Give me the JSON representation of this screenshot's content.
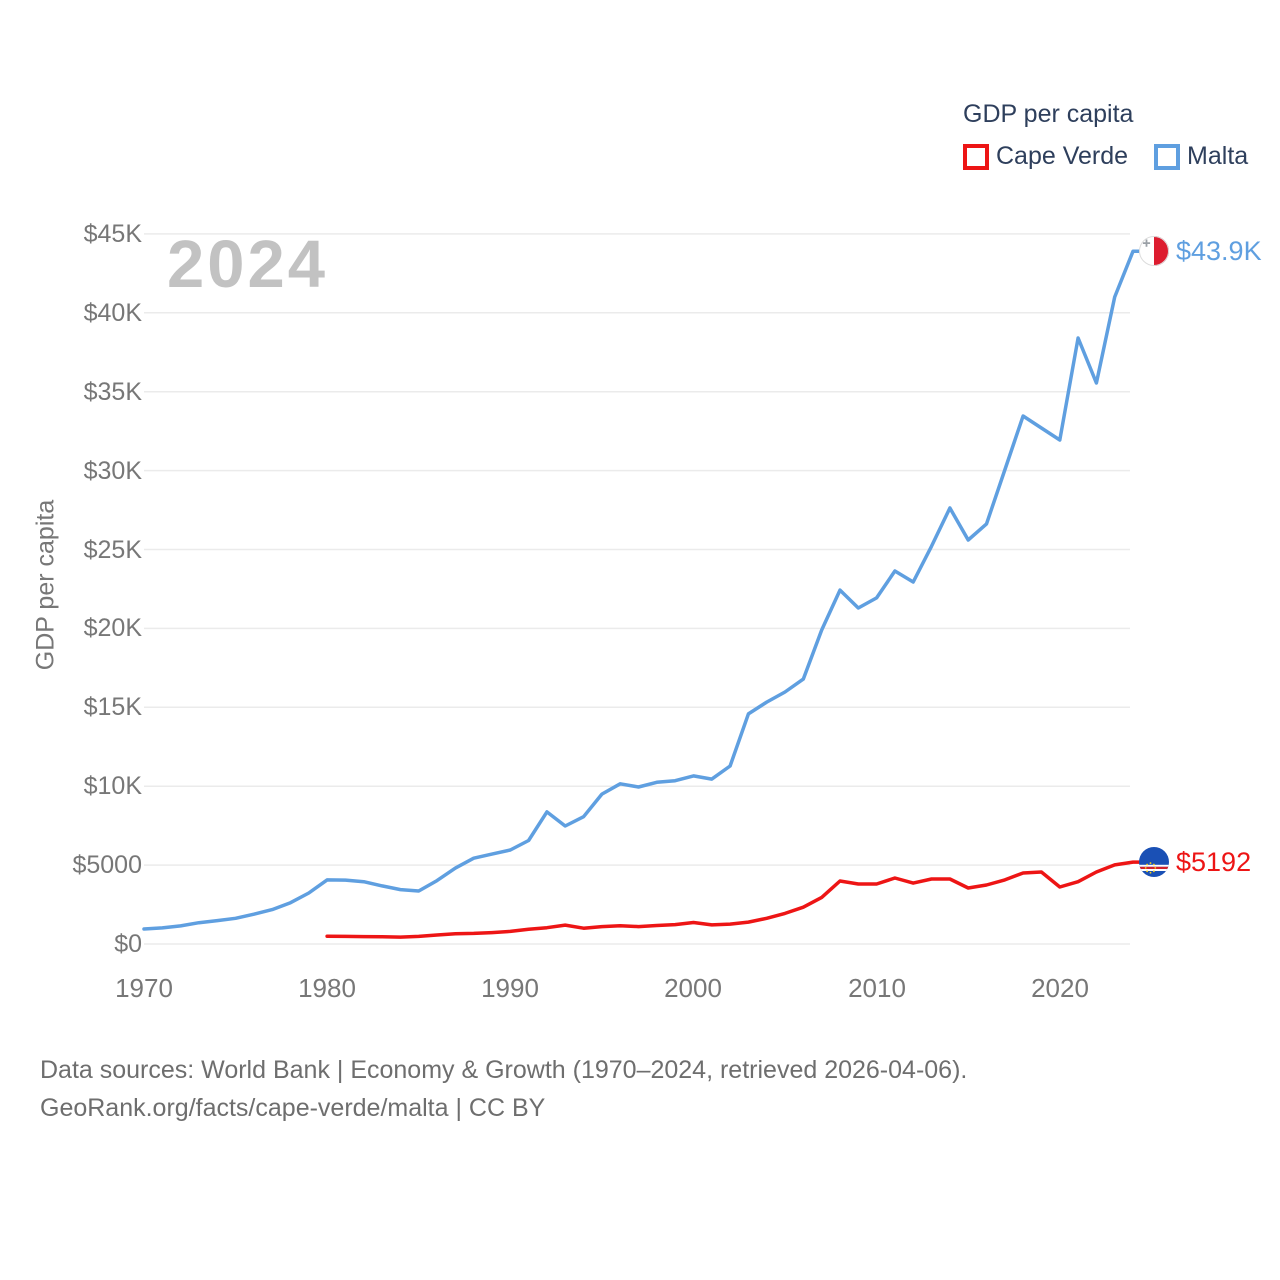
{
  "legend": {
    "title": "GDP per capita",
    "items": [
      {
        "label": "Cape Verde",
        "color": "#ed1515"
      },
      {
        "label": "Malta",
        "color": "#5f9fe0"
      }
    ]
  },
  "watermark": "2024",
  "footer": {
    "line1": "Data sources: World Bank | Economy & Growth (1970–2024, retrieved 2026-04-06).",
    "line2": "GeoRank.org/facts/cape-verde/malta | CC BY"
  },
  "chart_data": {
    "type": "line",
    "title": "GDP per capita",
    "xlabel": "",
    "ylabel": "GDP per capita",
    "x_range": [
      1970,
      2024
    ],
    "ylim": [
      0,
      45000
    ],
    "grid": true,
    "grid_color": "#ebebeb",
    "legend_position": "top-right",
    "y_ticks": [
      {
        "label": "$0",
        "value": 0
      },
      {
        "label": "$5000",
        "value": 5000
      },
      {
        "label": "$10K",
        "value": 10000
      },
      {
        "label": "$15K",
        "value": 15000
      },
      {
        "label": "$20K",
        "value": 20000
      },
      {
        "label": "$25K",
        "value": 25000
      },
      {
        "label": "$30K",
        "value": 30000
      },
      {
        "label": "$35K",
        "value": 35000
      },
      {
        "label": "$40K",
        "value": 40000
      },
      {
        "label": "$45K",
        "value": 45000
      }
    ],
    "x_ticks": [
      {
        "label": "1970",
        "value": 1970
      },
      {
        "label": "1980",
        "value": 1980
      },
      {
        "label": "1990",
        "value": 1990
      },
      {
        "label": "2000",
        "value": 2000
      },
      {
        "label": "2010",
        "value": 2010
      },
      {
        "label": "2020",
        "value": 2020
      }
    ],
    "series": [
      {
        "name": "Malta",
        "color": "#5f9fe0",
        "x": [
          1970,
          1971,
          1972,
          1973,
          1974,
          1975,
          1976,
          1977,
          1978,
          1979,
          1980,
          1981,
          1982,
          1983,
          1984,
          1985,
          1986,
          1987,
          1988,
          1989,
          1990,
          1991,
          1992,
          1993,
          1994,
          1995,
          1996,
          1997,
          1998,
          1999,
          2000,
          2001,
          2002,
          2003,
          2004,
          2005,
          2006,
          2007,
          2008,
          2009,
          2010,
          2011,
          2012,
          2013,
          2014,
          2015,
          2016,
          2017,
          2018,
          2019,
          2020,
          2021,
          2022,
          2023,
          2024
        ],
        "y": [
          950,
          1020,
          1150,
          1350,
          1480,
          1630,
          1890,
          2180,
          2620,
          3230,
          4060,
          4050,
          3950,
          3680,
          3450,
          3360,
          4020,
          4810,
          5440,
          5700,
          5960,
          6560,
          8370,
          7480,
          8070,
          9500,
          10150,
          9950,
          10250,
          10350,
          10650,
          10450,
          11280,
          14580,
          15330,
          15970,
          16790,
          19900,
          22430,
          21290,
          21930,
          23640,
          22940,
          25200,
          27630,
          25600,
          26620,
          30040,
          33460,
          32700,
          31940,
          38400,
          35550,
          41000,
          43900
        ]
      },
      {
        "name": "Cape Verde",
        "color": "#ed1515",
        "x": [
          1980,
          1981,
          1982,
          1983,
          1984,
          1985,
          1986,
          1987,
          1988,
          1989,
          1990,
          1991,
          1992,
          1993,
          1994,
          1995,
          1996,
          1997,
          1998,
          1999,
          2000,
          2001,
          2002,
          2003,
          2004,
          2005,
          2006,
          2007,
          2008,
          2009,
          2010,
          2011,
          2012,
          2013,
          2014,
          2015,
          2016,
          2017,
          2018,
          2019,
          2020,
          2021,
          2022,
          2023,
          2024
        ],
        "y": [
          490,
          480,
          470,
          460,
          440,
          480,
          570,
          650,
          670,
          720,
          800,
          930,
          1030,
          1200,
          1000,
          1100,
          1160,
          1100,
          1170,
          1230,
          1360,
          1210,
          1260,
          1390,
          1630,
          1940,
          2330,
          2950,
          3990,
          3800,
          3800,
          4180,
          3860,
          4120,
          4120,
          3550,
          3740,
          4060,
          4500,
          4560,
          3610,
          3950,
          4560,
          5010,
          5192
        ]
      }
    ],
    "annotations": [
      {
        "series": "Malta",
        "text": "$43.9K",
        "x": 2024,
        "y": 43900,
        "color": "#5f9fe0",
        "flag_icon": "malta-flag"
      },
      {
        "series": "Cape Verde",
        "text": "$5192",
        "x": 2024,
        "y": 5192,
        "color": "#ed1515",
        "flag_icon": "cape-verde-flag"
      }
    ]
  }
}
